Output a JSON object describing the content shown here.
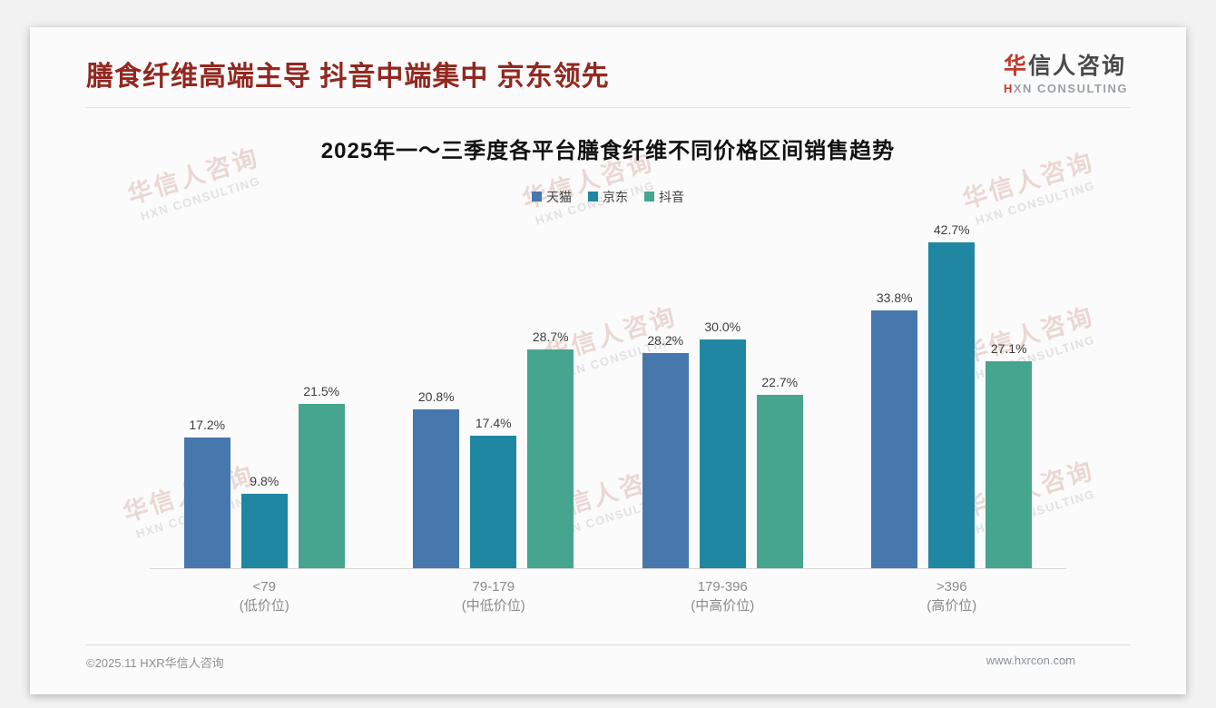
{
  "page": {
    "header": {
      "title": "膳食纤维高端主导 抖音中端集中 京东领先",
      "logo": {
        "cn_first": "华",
        "cn_rest": "信人咨询",
        "en_first": "H",
        "en_rest": "XN CONSULTING"
      }
    },
    "watermark": {
      "line1": "华信人咨询",
      "line2": "HXN CONSULTING"
    },
    "footer": {
      "copyright": "©2025.11 HXR华信人咨询",
      "website": "www.hxrcon.com"
    }
  },
  "colors": {
    "title": "#922820",
    "logo_red": "#c23a2b",
    "tmall_blue": "#4677ad",
    "jd_teal": "#1f87a2",
    "douyin_green": "#46a58e"
  },
  "chart_data": {
    "type": "bar",
    "title": "2025年一～三季度各平台膳食纤维不同价格区间销售趋势",
    "categories": [
      {
        "range": "<79",
        "tier": "(低价位)"
      },
      {
        "range": "79-179",
        "tier": "(中低价位)"
      },
      {
        "range": "179-396",
        "tier": "(中高价位)"
      },
      {
        "range": ">396",
        "tier": "(高价位)"
      }
    ],
    "series": [
      {
        "name": "天猫",
        "color": "#4677ad",
        "values": [
          17.2,
          20.8,
          28.2,
          33.8
        ]
      },
      {
        "name": "京东",
        "color": "#1f87a2",
        "values": [
          9.8,
          17.4,
          30.0,
          42.7
        ]
      },
      {
        "name": "抖音",
        "color": "#46a58e",
        "values": [
          21.5,
          28.7,
          22.7,
          27.1
        ]
      }
    ],
    "value_suffix": "%",
    "value_decimals": 1,
    "ylim": [
      0,
      45
    ],
    "grid": false,
    "legend_position": "top",
    "xlabel": "",
    "ylabel": ""
  }
}
